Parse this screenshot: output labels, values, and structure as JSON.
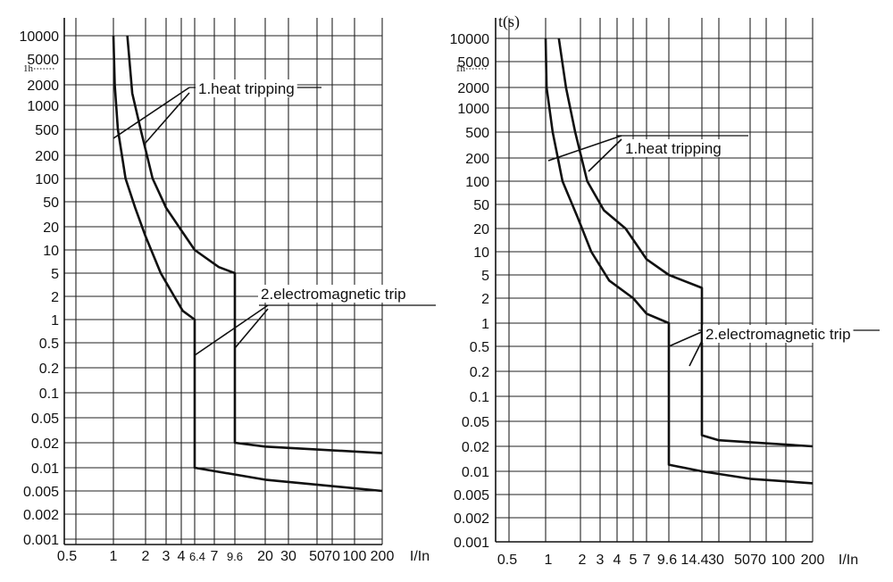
{
  "chart_data": [
    {
      "type": "line",
      "title": "",
      "xlabel": "I/In",
      "ylabel": "",
      "x_scale": "categorical-log",
      "y_scale": "categorical-log",
      "grid": true,
      "x_ticks": [
        "0.5",
        "1",
        "2",
        "3",
        "4",
        "6.4",
        "7",
        "9.6",
        "20",
        "30",
        "50",
        "70",
        "100",
        "200"
      ],
      "y_ticks": [
        "10000",
        "5000",
        "2000",
        "1000",
        "500",
        "200",
        "100",
        "50",
        "20",
        "10",
        "5",
        "2",
        "1",
        "0.5",
        "0.2",
        "0.1",
        "0.05",
        "0.02",
        "0.01",
        "0.005",
        "0.002",
        "0.001"
      ],
      "y_marker": "1h",
      "annotations": [
        "1.heat tripping",
        "2.electromagnetic trip"
      ],
      "series": [
        {
          "points": [
            [
              1,
              10000
            ],
            [
              1.03,
              2000
            ],
            [
              1.1,
              500
            ],
            [
              1.3,
              100
            ],
            [
              1.6,
              40
            ],
            [
              2,
              15
            ],
            [
              2.7,
              5
            ],
            [
              3.5,
              2
            ],
            [
              4.2,
              1.3
            ],
            [
              6.4,
              1
            ],
            [
              6.4,
              0.01
            ],
            [
              20,
              0.007
            ],
            [
              200,
              0.005
            ]
          ]
        },
        {
          "points": [
            [
              1.35,
              10000
            ],
            [
              1.5,
              1500
            ],
            [
              1.8,
              500
            ],
            [
              2.3,
              100
            ],
            [
              3,
              40
            ],
            [
              4,
              18
            ],
            [
              6.4,
              10
            ],
            [
              7.5,
              6
            ],
            [
              9.6,
              5
            ],
            [
              9.6,
              0.02
            ],
            [
              20,
              0.018
            ],
            [
              200,
              0.015
            ]
          ]
        }
      ]
    },
    {
      "type": "line",
      "title": "",
      "xlabel": "I/In",
      "ylabel": "t(s)",
      "x_scale": "categorical-log",
      "y_scale": "categorical-log",
      "grid": true,
      "x_ticks": [
        "0.5",
        "1",
        "2",
        "3",
        "4",
        "5",
        "7",
        "9.6",
        "14.4",
        "30",
        "50",
        "70",
        "100",
        "200"
      ],
      "y_ticks": [
        "10000",
        "5000",
        "2000",
        "1000",
        "500",
        "200",
        "100",
        "50",
        "20",
        "10",
        "5",
        "2",
        "1",
        "0.5",
        "0.2",
        "0.1",
        "0.05",
        "0.02",
        "0.01",
        "0.005",
        "0.002",
        "0.001"
      ],
      "y_marker": "1h",
      "annotations": [
        "1.heat tripping",
        "2.electromagnetic trip"
      ],
      "series": [
        {
          "points": [
            [
              1,
              10000
            ],
            [
              1.02,
              2000
            ],
            [
              1.15,
              500
            ],
            [
              1.4,
              100
            ],
            [
              1.9,
              30
            ],
            [
              2.5,
              10
            ],
            [
              3.5,
              4
            ],
            [
              5,
              2
            ],
            [
              7,
              1.3
            ],
            [
              9.6,
              1
            ],
            [
              9.6,
              0.012
            ],
            [
              14.4,
              0.01
            ],
            [
              50,
              0.008
            ],
            [
              200,
              0.007
            ]
          ]
        },
        {
          "points": [
            [
              1.3,
              10000
            ],
            [
              1.5,
              2000
            ],
            [
              1.8,
              500
            ],
            [
              2.3,
              100
            ],
            [
              3.2,
              40
            ],
            [
              4.5,
              20
            ],
            [
              7,
              8
            ],
            [
              9.6,
              5
            ],
            [
              14.4,
              3
            ],
            [
              14.4,
              0.03
            ],
            [
              30,
              0.025
            ],
            [
              200,
              0.02
            ]
          ]
        }
      ]
    }
  ]
}
